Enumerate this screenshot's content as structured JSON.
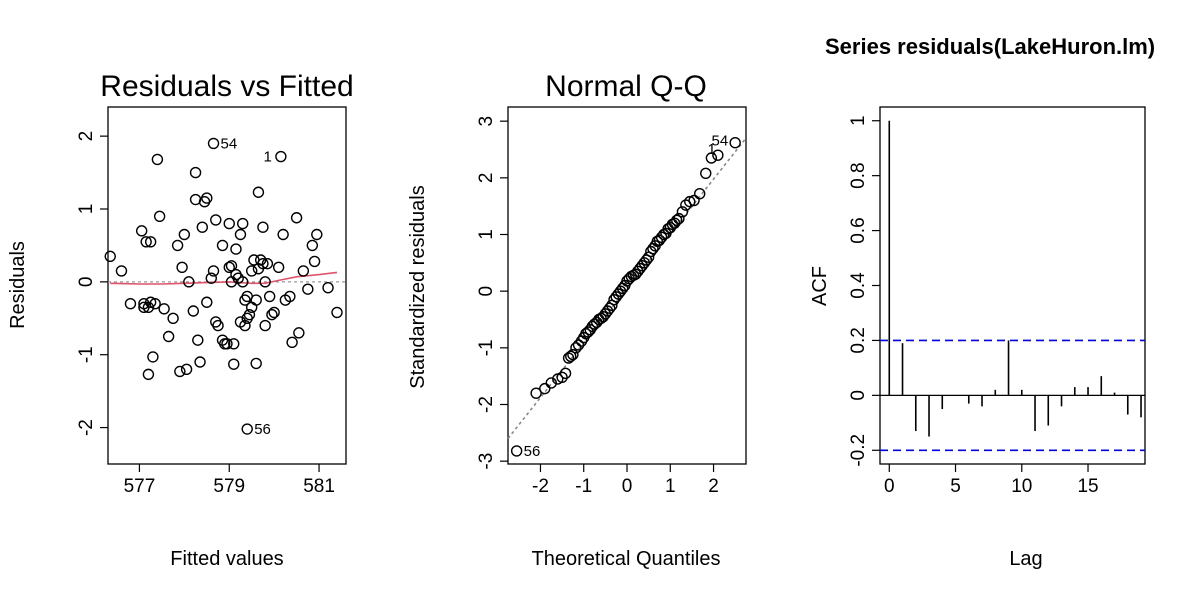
{
  "chart_data": [
    {
      "type": "scatter",
      "title": "Residuals vs Fitted",
      "xlabel": "Fitted values",
      "ylabel": "Residuals",
      "xlim": [
        576.3,
        581.6
      ],
      "ylim": [
        -2.5,
        2.4
      ],
      "xticks": [
        577,
        579,
        581
      ],
      "yticks": [
        -2,
        -1,
        0,
        1,
        2
      ],
      "reference_line_y": 0,
      "x": [
        576.35,
        576.6,
        576.8,
        577.05,
        577.1,
        577.1,
        577.15,
        577.2,
        577.2,
        577.25,
        577.25,
        577.3,
        577.35,
        577.4,
        577.45,
        577.55,
        577.65,
        577.75,
        577.85,
        577.9,
        577.95,
        578.0,
        578.05,
        578.1,
        578.2,
        578.25,
        578.25,
        578.3,
        578.35,
        578.4,
        578.45,
        578.5,
        578.5,
        578.6,
        578.65,
        578.7,
        578.7,
        578.75,
        578.85,
        578.85,
        578.9,
        578.95,
        579.0,
        579.0,
        579.05,
        579.05,
        579.1,
        579.1,
        579.15,
        579.15,
        579.2,
        579.25,
        579.25,
        579.3,
        579.3,
        579.35,
        579.35,
        579.4,
        579.4,
        579.45,
        579.5,
        579.5,
        579.55,
        579.6,
        579.6,
        579.65,
        579.65,
        579.7,
        579.75,
        579.75,
        579.8,
        579.8,
        579.85,
        579.9,
        579.95,
        580.0,
        580.1,
        580.2,
        580.25,
        580.35,
        580.4,
        580.5,
        580.55,
        580.65,
        580.75,
        580.85,
        580.9,
        580.95,
        581.2,
        581.4,
        579.4,
        580.15,
        578.65
      ],
      "y": [
        0.35,
        0.15,
        -0.3,
        0.7,
        -0.35,
        -0.3,
        0.55,
        -1.27,
        -0.35,
        -0.28,
        0.55,
        -1.03,
        -0.3,
        1.68,
        0.9,
        -0.37,
        -0.75,
        -0.5,
        0.5,
        -1.23,
        0.2,
        0.65,
        -1.2,
        0.0,
        -0.4,
        1.13,
        1.5,
        -0.8,
        -1.1,
        0.75,
        1.1,
        1.15,
        -0.28,
        0.05,
        0.15,
        0.85,
        -0.55,
        -0.6,
        0.5,
        -0.8,
        -0.85,
        -0.85,
        0.2,
        0.8,
        0.0,
        0.22,
        -0.85,
        -1.13,
        0.45,
        0.1,
        0.05,
        0.65,
        -0.55,
        0.0,
        0.8,
        -0.25,
        -0.6,
        -0.5,
        -0.2,
        -0.45,
        0.15,
        -0.35,
        0.3,
        -1.12,
        -0.25,
        1.23,
        0.18,
        0.3,
        0.25,
        0.75,
        0.0,
        -0.6,
        0.25,
        -0.2,
        -0.45,
        -0.42,
        0.2,
        0.65,
        -0.25,
        -0.2,
        -0.83,
        0.88,
        -0.7,
        0.15,
        -0.1,
        0.5,
        0.28,
        0.65,
        -0.08,
        -0.42,
        -2.02,
        1.72,
        1.9
      ],
      "labeled_points": [
        {
          "label": "54",
          "x": 578.65,
          "y": 1.9
        },
        {
          "label": "1",
          "x": 580.15,
          "y": 1.72
        },
        {
          "label": "56",
          "x": 579.4,
          "y": -2.02
        }
      ],
      "smooth_x": [
        576.35,
        577.0,
        577.5,
        578.0,
        578.5,
        579.0,
        579.5,
        579.8,
        580.1,
        580.5,
        581.0,
        581.4
      ],
      "smooth_y": [
        -0.02,
        -0.03,
        -0.03,
        -0.02,
        -0.01,
        0.0,
        -0.02,
        -0.02,
        0.02,
        0.07,
        0.1,
        0.13
      ]
    },
    {
      "type": "scatter",
      "title": "Normal Q-Q",
      "xlabel": "Theoretical Quantiles",
      "ylabel": "Standardized residuals",
      "xlim": [
        -2.75,
        2.75
      ],
      "ylim": [
        -3.05,
        3.25
      ],
      "xticks": [
        -2,
        -1,
        0,
        1,
        2
      ],
      "yticks": [
        -3,
        -2,
        -1,
        0,
        1,
        2,
        3
      ],
      "reference_line": {
        "from": [
          -2.75,
          -2.6
        ],
        "to": [
          2.75,
          2.7
        ]
      },
      "x": [
        -2.55,
        -2.1,
        -1.9,
        -1.75,
        -1.6,
        -1.5,
        -1.42,
        -1.35,
        -1.3,
        -1.25,
        -1.18,
        -1.12,
        -1.05,
        -1.0,
        -0.95,
        -0.9,
        -0.85,
        -0.8,
        -0.75,
        -0.7,
        -0.65,
        -0.6,
        -0.55,
        -0.5,
        -0.45,
        -0.4,
        -0.35,
        -0.3,
        -0.25,
        -0.2,
        -0.15,
        -0.1,
        -0.05,
        0.0,
        0.05,
        0.1,
        0.15,
        0.2,
        0.25,
        0.3,
        0.35,
        0.4,
        0.45,
        0.5,
        0.55,
        0.6,
        0.65,
        0.7,
        0.75,
        0.8,
        0.85,
        0.9,
        0.95,
        1.0,
        1.05,
        1.1,
        1.15,
        1.2,
        1.28,
        1.36,
        1.45,
        1.55,
        1.68,
        1.82,
        1.95,
        2.1,
        2.5
      ],
      "y": [
        -2.82,
        -1.8,
        -1.72,
        -1.62,
        -1.55,
        -1.52,
        -1.45,
        -1.18,
        -1.15,
        -1.12,
        -1.0,
        -0.95,
        -0.88,
        -0.82,
        -0.75,
        -0.72,
        -0.68,
        -0.62,
        -0.58,
        -0.55,
        -0.5,
        -0.48,
        -0.45,
        -0.4,
        -0.35,
        -0.3,
        -0.25,
        -0.15,
        -0.1,
        -0.05,
        0.0,
        0.05,
        0.1,
        0.18,
        0.22,
        0.26,
        0.28,
        0.3,
        0.35,
        0.4,
        0.45,
        0.5,
        0.55,
        0.6,
        0.7,
        0.75,
        0.8,
        0.88,
        0.9,
        0.95,
        1.0,
        1.02,
        1.1,
        1.12,
        1.18,
        1.2,
        1.25,
        1.28,
        1.4,
        1.52,
        1.58,
        1.6,
        1.72,
        2.08,
        2.35,
        2.4,
        2.62
      ],
      "labeled_points": [
        {
          "label": "54",
          "x": 2.5,
          "y": 2.62
        },
        {
          "label": "1",
          "x": 2.1,
          "y": 2.4
        },
        {
          "label": "56",
          "x": -2.55,
          "y": -2.82
        }
      ]
    },
    {
      "type": "bar",
      "subtype": "acf",
      "title": "Series  residuals(LakeHuron.lm)",
      "xlabel": "Lag",
      "ylabel": "ACF",
      "xlim": [
        -0.7,
        19.3
      ],
      "ylim": [
        -0.25,
        1.05
      ],
      "xticks": [
        0,
        5,
        10,
        15
      ],
      "yticks": [
        -0.2,
        0.0,
        0.2,
        0.4,
        0.6,
        0.8,
        1.0
      ],
      "lags": [
        0,
        1,
        2,
        3,
        4,
        5,
        6,
        7,
        8,
        9,
        10,
        11,
        12,
        13,
        14,
        15,
        16,
        17,
        18,
        19
      ],
      "values": [
        1.0,
        0.19,
        -0.13,
        -0.15,
        -0.05,
        0.0,
        -0.03,
        -0.04,
        0.02,
        0.2,
        0.02,
        -0.13,
        -0.11,
        -0.04,
        0.03,
        0.03,
        0.07,
        0.01,
        -0.07,
        -0.08
      ],
      "confidence_bounds": [
        0.2,
        -0.2
      ],
      "colors": {
        "bounds": "#0000dd"
      }
    }
  ]
}
